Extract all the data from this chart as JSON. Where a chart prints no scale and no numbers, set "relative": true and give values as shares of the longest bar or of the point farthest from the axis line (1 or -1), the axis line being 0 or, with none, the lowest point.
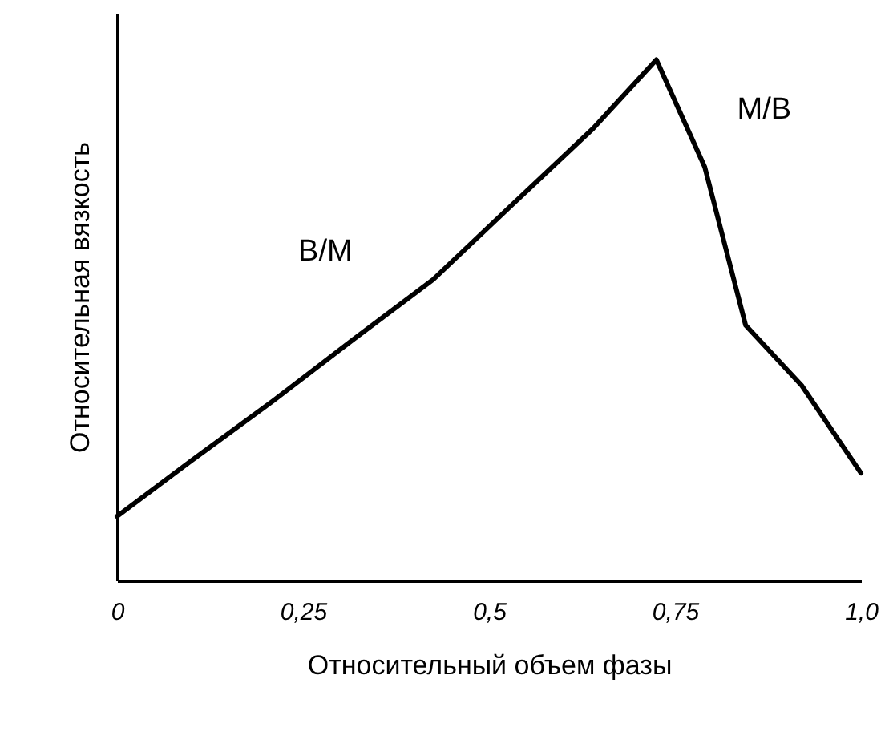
{
  "chart_data": {
    "type": "line",
    "relative": true,
    "xlabel": "Относительный объем фазы",
    "ylabel": "Относительная вязкость",
    "x": [
      0,
      0.1,
      0.21,
      0.317,
      0.425,
      0.53,
      0.64,
      0.725,
      0.79,
      0.845,
      0.92,
      1.0
    ],
    "series": [
      {
        "color": "#000000",
        "values": [
          0.123,
          0.23,
          0.345,
          0.462,
          0.578,
          0.72,
          0.868,
          1.0,
          0.794,
          0.49,
          0.375,
          0.206
        ]
      }
    ],
    "xlim": [
      0,
      1
    ],
    "xticks": [
      0,
      {
        "value": 0.25,
        "label": "0,25"
      },
      {
        "value": 0.5,
        "label": "0,5"
      },
      {
        "value": 0.75,
        "label": "0,75"
      },
      {
        "value": 1,
        "label": "1,0"
      }
    ],
    "annotations": [
      "B/M",
      "M/B"
    ],
    "grid": false,
    "marker": "none",
    "line_style": "solid"
  }
}
